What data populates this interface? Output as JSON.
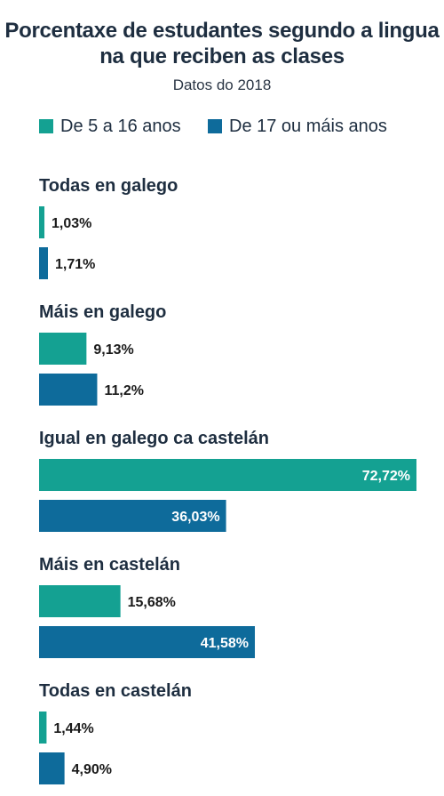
{
  "chart_data": {
    "type": "bar",
    "title_lines": [
      "Porcentaxe de estudantes segundo a lingua",
      "na que reciben as clases"
    ],
    "subtitle": "Datos do 2018",
    "categories": [
      "Todas en galego",
      "Máis en galego",
      "Igual en galego ca castelán",
      "Máis en castelán",
      "Todas en castelán"
    ],
    "series": [
      {
        "name": "De 5 a 16 anos",
        "color": "#14a192",
        "values": [
          1.03,
          9.13,
          72.72,
          15.68,
          1.44
        ],
        "labels": [
          "1,03%",
          "9,13%",
          "72,72%",
          "15,68%",
          "1,44%"
        ]
      },
      {
        "name": "De 17 ou máis anos",
        "color": "#0e6b9b",
        "values": [
          1.71,
          11.2,
          36.03,
          41.58,
          4.9
        ],
        "labels": [
          "1,71%",
          "11,2%",
          "36,03%",
          "41,58%",
          "4,90%"
        ]
      }
    ],
    "xlim": [
      0,
      72.72
    ],
    "grid": false,
    "legend": "top"
  }
}
